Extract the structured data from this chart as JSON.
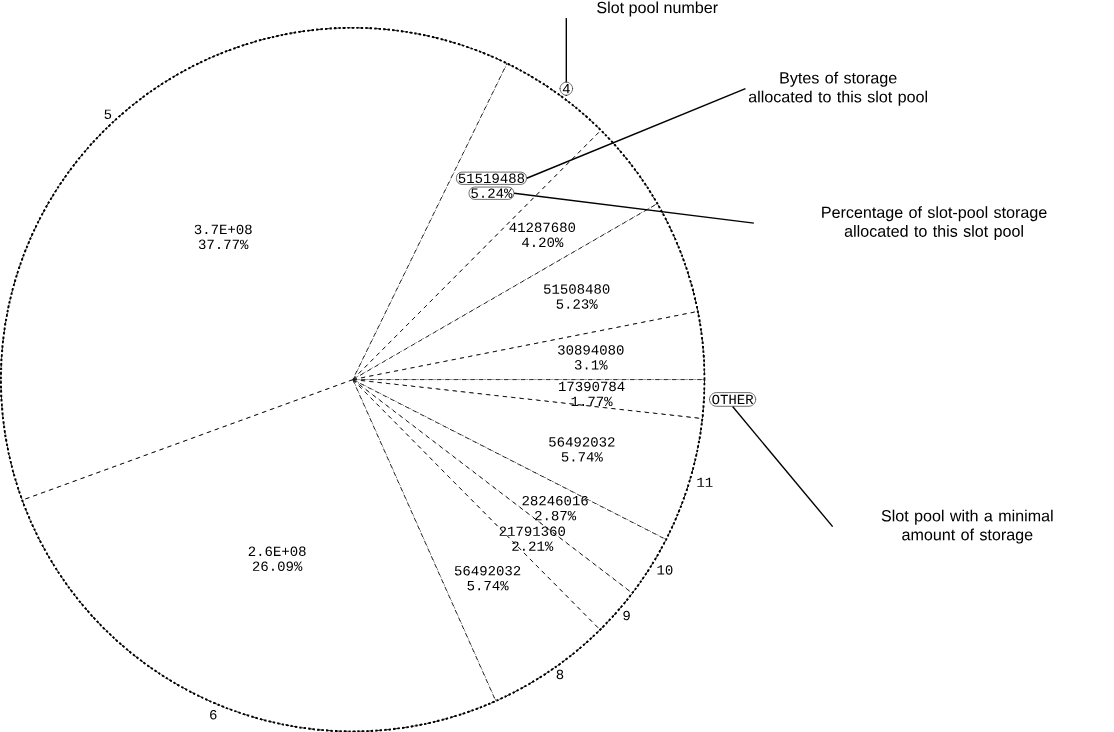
{
  "chart_data": {
    "type": "pie",
    "categories": [
      "4",
      null,
      null,
      null,
      "OTHER",
      "11",
      "10",
      "9",
      "8",
      "6",
      "5"
    ],
    "values": [
      5.24,
      4.2,
      5.23,
      3.1,
      1.77,
      5.74,
      2.87,
      2.21,
      5.74,
      26.09,
      37.77
    ],
    "value_labels": [
      "5.24%",
      "4.20%",
      "5.23%",
      "3.1%",
      "1.77%",
      "5.74%",
      "2.87%",
      "2.21%",
      "5.74%",
      "26.09%",
      "37.77%"
    ],
    "annotations": [
      "51519488",
      "41287680",
      "51508480",
      "30894080",
      "17390784",
      "56492032",
      "28246016",
      "21791360",
      "56492032",
      "2.6E+08",
      "3.7E+08",
      "Slot pool number",
      "Bytes of storage allocated to this slot pool",
      "Percentage of slot-pool storage allocated to this slot pool",
      "Slot pool with a minimal amount of storage"
    ]
  }
}
